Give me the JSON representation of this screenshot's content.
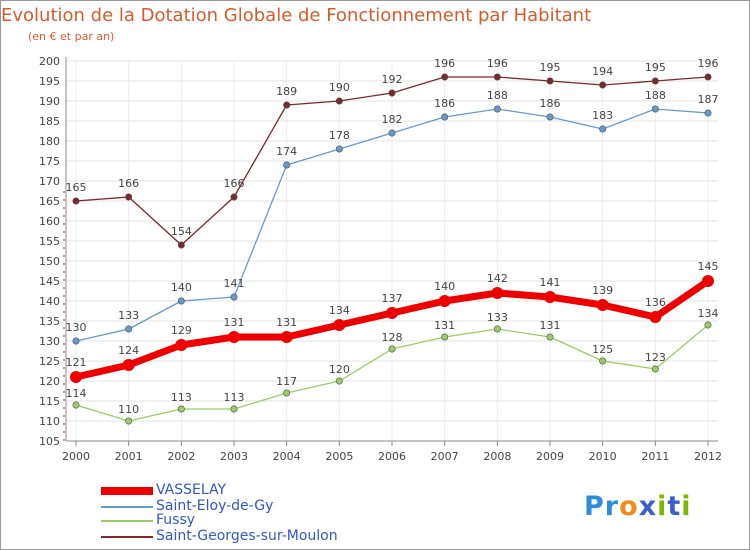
{
  "title": "Evolution de la Dotation Globale de Fonctionnement par Habitant",
  "subtitle": "(en € et par an)",
  "logo": {
    "text": "Proxiti",
    "letters": [
      "P",
      "r",
      "o",
      "x",
      "i",
      "t",
      "i"
    ],
    "colors": [
      "#2a8fd6",
      "#2a8fd6",
      "#f08c1a",
      "#3a60c8",
      "#7ab800",
      "#3a60c8",
      "#7ab800"
    ]
  },
  "chart_data": {
    "type": "line",
    "title": "Evolution de la Dotation Globale de Fonctionnement par Habitant",
    "subtitle": "(en € et par an)",
    "x": [
      "2000",
      "2001",
      "2002",
      "2003",
      "2004",
      "2005",
      "2006",
      "2007",
      "2008",
      "2009",
      "2010",
      "2011",
      "2012"
    ],
    "ylim": [
      105,
      200
    ],
    "yticks": [
      105,
      110,
      115,
      120,
      125,
      130,
      135,
      140,
      145,
      150,
      155,
      160,
      165,
      170,
      175,
      180,
      185,
      190,
      195,
      200
    ],
    "grid": true,
    "legend_position": "bottom-left",
    "series": [
      {
        "name": "VASSELAY",
        "values": [
          121,
          124,
          129,
          131,
          131,
          134,
          137,
          140,
          142,
          141,
          139,
          136,
          145
        ],
        "color": "#ee0000"
      },
      {
        "name": "Saint-Eloy-de-Gy",
        "values": [
          130,
          133,
          140,
          141,
          174,
          178,
          182,
          186,
          188,
          186,
          183,
          188,
          187
        ],
        "color": "#6699cc"
      },
      {
        "name": "Fussy",
        "values": [
          114,
          110,
          113,
          113,
          117,
          120,
          128,
          131,
          133,
          131,
          125,
          123,
          134
        ],
        "color": "#99cc66"
      },
      {
        "name": "Saint-Georges-sur-Moulon",
        "values": [
          165,
          166,
          154,
          166,
          189,
          190,
          192,
          196,
          196,
          195,
          194,
          195,
          196
        ],
        "color": "#7a2a2a"
      }
    ]
  }
}
